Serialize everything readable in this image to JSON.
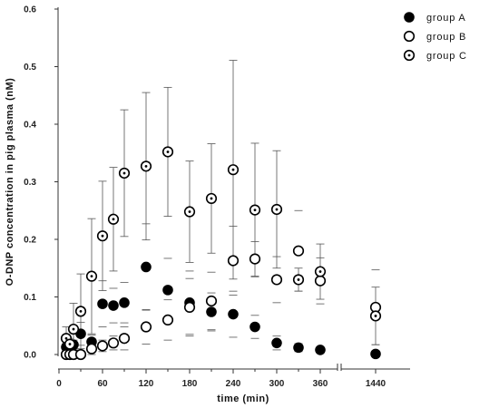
{
  "chart_data": {
    "type": "scatter",
    "title": "",
    "xlabel": "time (min)",
    "ylabel": "O-DNP concentration in pig plasma (nM)",
    "ylim": [
      0,
      0.6
    ],
    "y_ticks": [
      "0.0",
      "0.1",
      "0.2",
      "0.3",
      "0.4",
      "0.5",
      "0.6"
    ],
    "x_ticks": [
      "0",
      "60",
      "120",
      "180",
      "240",
      "300",
      "360",
      "1440"
    ],
    "x_axis_break": "between 360 and 1440",
    "grid": false,
    "legend_position": "top-right",
    "series": [
      {
        "name": "group A",
        "marker": "filled-circle",
        "points": [
          {
            "x": 10,
            "y": 0.013,
            "err": 0.006
          },
          {
            "x": 15,
            "y": 0.015,
            "err": 0.007
          },
          {
            "x": 20,
            "y": 0.017,
            "err": 0.008
          },
          {
            "x": 30,
            "y": 0.036,
            "err": 0.02
          },
          {
            "x": 45,
            "y": 0.022,
            "err": 0.012
          },
          {
            "x": 60,
            "y": 0.088,
            "err": 0.04
          },
          {
            "x": 75,
            "y": 0.085,
            "err": 0.03
          },
          {
            "x": 90,
            "y": 0.09,
            "err": 0.035
          },
          {
            "x": 120,
            "y": 0.152,
            "err": 0.075
          },
          {
            "x": 150,
            "y": 0.112,
            "err": 0.055
          },
          {
            "x": 180,
            "y": 0.09,
            "err": 0.055
          },
          {
            "x": 210,
            "y": 0.074,
            "err": 0.033
          },
          {
            "x": 240,
            "y": 0.07,
            "err": 0.04
          },
          {
            "x": 270,
            "y": 0.048,
            "err": 0.02
          },
          {
            "x": 300,
            "y": 0.02,
            "err": 0.012
          },
          {
            "x": 330,
            "y": 0.012,
            "err": 0.007
          },
          {
            "x": 360,
            "y": 0.008,
            "err": 0.004
          },
          {
            "x": 1440,
            "y": 0.001,
            "err": 0.001
          }
        ]
      },
      {
        "name": "group B",
        "marker": "open-circle",
        "points": [
          {
            "x": 10,
            "y": 0.0,
            "err": 0.006
          },
          {
            "x": 15,
            "y": 0.0,
            "err": 0.006
          },
          {
            "x": 20,
            "y": 0.0,
            "err": 0.006
          },
          {
            "x": 30,
            "y": 0.0,
            "err": 0.006
          },
          {
            "x": 45,
            "y": 0.01,
            "err": 0.01
          },
          {
            "x": 60,
            "y": 0.015,
            "err": 0.01
          },
          {
            "x": 75,
            "y": 0.02,
            "err": 0.012
          },
          {
            "x": 90,
            "y": 0.028,
            "err": 0.02
          },
          {
            "x": 120,
            "y": 0.048,
            "err": 0.03
          },
          {
            "x": 150,
            "y": 0.06,
            "err": 0.035
          },
          {
            "x": 180,
            "y": 0.082,
            "err": 0.05
          },
          {
            "x": 210,
            "y": 0.093,
            "err": 0.05
          },
          {
            "x": 240,
            "y": 0.163,
            "err": 0.06
          },
          {
            "x": 270,
            "y": 0.166,
            "err": 0.03
          },
          {
            "x": 300,
            "y": 0.13,
            "err": 0.04
          },
          {
            "x": 330,
            "y": 0.18,
            "err": 0.07
          },
          {
            "x": 360,
            "y": 0.128,
            "err": 0.04
          },
          {
            "x": 1440,
            "y": 0.082,
            "err": 0.065
          }
        ]
      },
      {
        "name": "group C",
        "marker": "dotted-circle",
        "points": [
          {
            "x": 10,
            "y": 0.028,
            "err": 0.02
          },
          {
            "x": 15,
            "y": 0.018,
            "err": 0.01
          },
          {
            "x": 20,
            "y": 0.044,
            "err": 0.045
          },
          {
            "x": 30,
            "y": 0.075,
            "err": 0.065
          },
          {
            "x": 45,
            "y": 0.136,
            "err": 0.1
          },
          {
            "x": 60,
            "y": 0.206,
            "err": 0.095
          },
          {
            "x": 75,
            "y": 0.235,
            "err": 0.09
          },
          {
            "x": 90,
            "y": 0.315,
            "err": 0.11
          },
          {
            "x": 120,
            "y": 0.327,
            "err": 0.128
          },
          {
            "x": 150,
            "y": 0.352,
            "err": 0.112
          },
          {
            "x": 180,
            "y": 0.248,
            "err": 0.088
          },
          {
            "x": 210,
            "y": 0.271,
            "err": 0.095
          },
          {
            "x": 240,
            "y": 0.321,
            "err": 0.19
          },
          {
            "x": 270,
            "y": 0.251,
            "err": 0.116
          },
          {
            "x": 300,
            "y": 0.252,
            "err": 0.102
          },
          {
            "x": 330,
            "y": 0.13,
            "err": 0.02
          },
          {
            "x": 360,
            "y": 0.144,
            "err": 0.048
          },
          {
            "x": 1440,
            "y": 0.067,
            "err": 0.05
          }
        ]
      }
    ]
  }
}
